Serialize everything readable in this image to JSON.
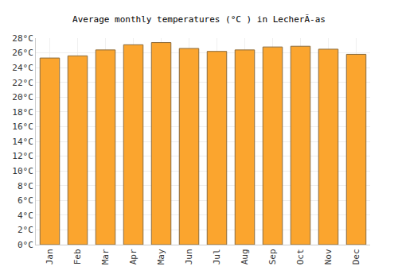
{
  "chart_data": {
    "type": "bar",
    "title": "Average monthly temperatures (°C ) in LecherÃ-as",
    "categories": [
      "Jan",
      "Feb",
      "Mar",
      "Apr",
      "May",
      "Jun",
      "Jul",
      "Aug",
      "Sep",
      "Oct",
      "Nov",
      "Dec"
    ],
    "values": [
      25.3,
      25.6,
      26.4,
      27.1,
      27.4,
      26.6,
      26.2,
      26.4,
      26.8,
      26.9,
      26.5,
      25.8
    ],
    "color": "#fba52e",
    "ylim": [
      0,
      28
    ],
    "yticks": [
      {
        "value": 0,
        "label": "0°C"
      },
      {
        "value": 2,
        "label": "2°C"
      },
      {
        "value": 4,
        "label": "4°C"
      },
      {
        "value": 6,
        "label": "6°C"
      },
      {
        "value": 8,
        "label": "8°C"
      },
      {
        "value": 10,
        "label": "10°C"
      },
      {
        "value": 12,
        "label": "12°C"
      },
      {
        "value": 14,
        "label": "14°C"
      },
      {
        "value": 16,
        "label": "16°C"
      },
      {
        "value": 18,
        "label": "18°C"
      },
      {
        "value": 20,
        "label": "20°C"
      },
      {
        "value": 22,
        "label": "22°C"
      },
      {
        "value": 24,
        "label": "24°C"
      },
      {
        "value": 26,
        "label": "26°C"
      },
      {
        "value": 28,
        "label": "28°C"
      }
    ],
    "grid": true
  }
}
